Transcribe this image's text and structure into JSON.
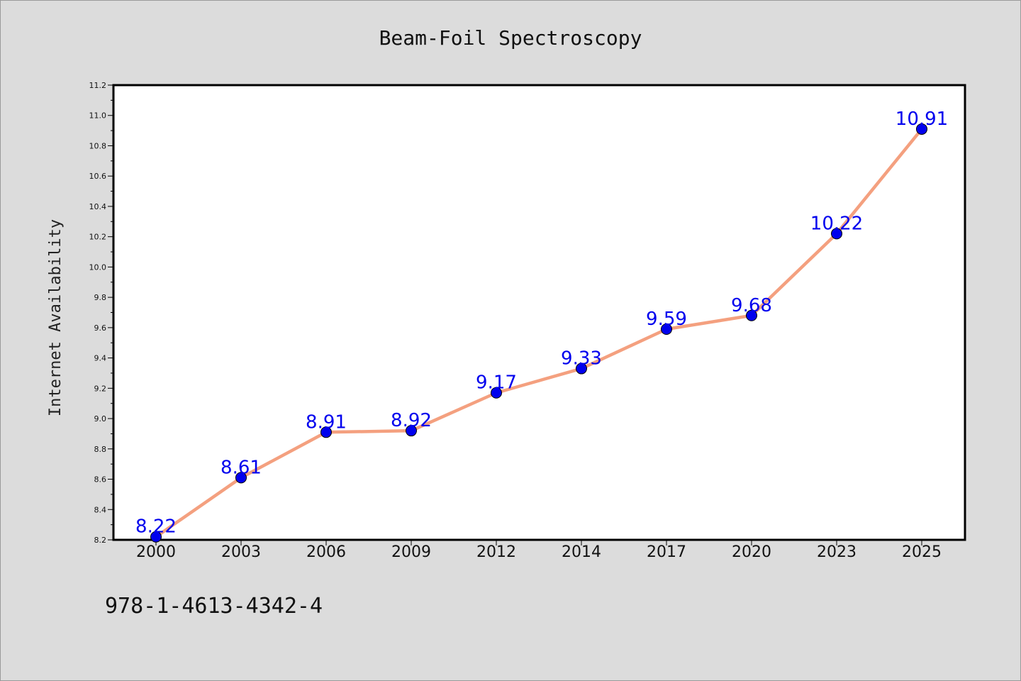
{
  "chart_data": {
    "type": "line",
    "title": "Beam-Foil Spectroscopy",
    "xlabel": "",
    "ylabel": "Internet Availability",
    "categories": [
      "2000",
      "2003",
      "2006",
      "2009",
      "2012",
      "2014",
      "2017",
      "2020",
      "2023",
      "2025"
    ],
    "series": [
      {
        "values": [
          8.22,
          8.61,
          8.91,
          8.92,
          9.17,
          9.33,
          9.59,
          9.68,
          10.22,
          10.91
        ]
      }
    ],
    "data_labels": [
      "8.22",
      "8.61",
      "8.91",
      "8.92",
      "9.17",
      "9.33",
      "9.59",
      "9.68",
      "10.22",
      "10.91"
    ],
    "ylim": [
      8.2,
      11.2
    ],
    "yticks": [
      "8.2",
      "8.4",
      "8.6",
      "8.8",
      "9.0",
      "9.2",
      "9.4",
      "9.6",
      "9.8",
      "10.0",
      "10.2",
      "10.4",
      "10.6",
      "10.8",
      "11.0",
      "11.2"
    ],
    "grid": false,
    "colors": {
      "line": "#f4a07f",
      "marker": "#0000ee",
      "data_label": "#0000ee",
      "plot_bg": "#ffffff",
      "page_bg": "#dcdcdc"
    }
  },
  "footer": {
    "isbn": "978-1-4613-4342-4"
  }
}
